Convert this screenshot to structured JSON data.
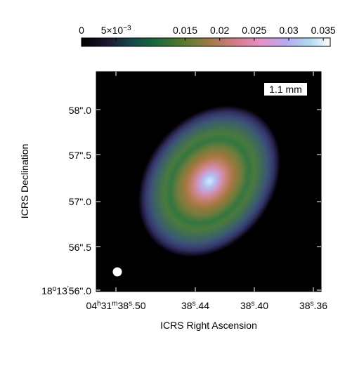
{
  "chart_data": {
    "type": "heatmap",
    "band_label": "1.1 mm",
    "xlabel": "ICRS Right Ascension",
    "ylabel": "ICRS Declination",
    "colorbar": {
      "colormap": "cubehelix",
      "range": [
        0,
        0.036
      ],
      "ticks": [
        {
          "value": 0,
          "label": "0"
        },
        {
          "value": 0.005,
          "label": "5×10",
          "exp": "−3"
        },
        {
          "value": 0.015,
          "label": "0.015"
        },
        {
          "value": 0.02,
          "label": "0.02"
        },
        {
          "value": 0.025,
          "label": "0.025"
        },
        {
          "value": 0.03,
          "label": "0.03"
        },
        {
          "value": 0.035,
          "label": "0.035"
        }
      ]
    },
    "x_ticks": [
      {
        "main": "04",
        "sup1": "h",
        "mid": "31",
        "sup2": "m",
        "tail": "38",
        "sup3": "s",
        "end": ".50"
      },
      {
        "main": "38",
        "sup1": "s",
        "end": ".44"
      },
      {
        "main": "38",
        "sup1": "s",
        "end": ".40"
      },
      {
        "main": "38",
        "sup1": "s",
        "end": ".36"
      }
    ],
    "y_ticks": [
      {
        "main": "18",
        "sup1": "o",
        "mid": "13",
        "sup2": "'",
        "tail": "56\".0"
      },
      {
        "main": "56\".5"
      },
      {
        "main": "57\".0"
      },
      {
        "main": "57\".5"
      },
      {
        "main": "58\".0"
      }
    ],
    "features": {
      "peak_value": 0.035,
      "inner_ring_value": 0.014,
      "outer_ring_value": 0.009,
      "beam": "circular"
    }
  }
}
